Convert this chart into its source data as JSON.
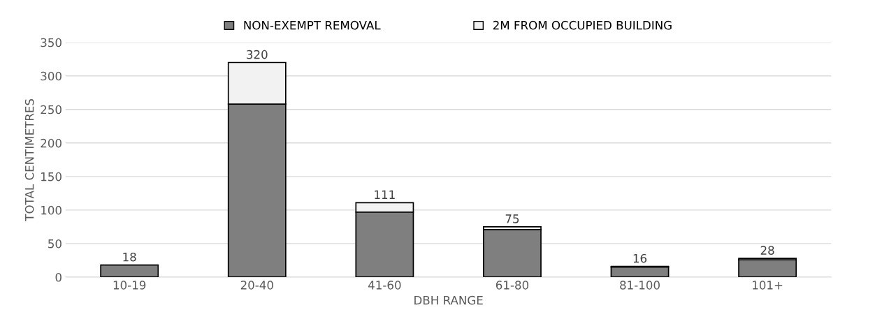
{
  "chart_data": {
    "type": "bar",
    "stacked": true,
    "xlabel": "DBH RANGE",
    "ylabel": "TOTAL CENTIMETRES",
    "categories": [
      "10-19",
      "20-40",
      "41-60",
      "61-80",
      "81-100",
      "101+"
    ],
    "series": [
      {
        "name": "NON-EXEMPT REMOVAL",
        "color": "#7f7f7f",
        "values": [
          18,
          258,
          97,
          71,
          15,
          26
        ]
      },
      {
        "name": "2M FROM OCCUPIED BUILDING",
        "color": "#f2f2f2",
        "values": [
          null,
          62,
          14,
          4,
          1,
          2
        ]
      }
    ],
    "totals": [
      "18",
      "320",
      "111",
      "75",
      "16",
      "28"
    ],
    "ylim": [
      0,
      350
    ],
    "yticks": [
      0,
      50,
      100,
      150,
      200,
      250,
      300,
      350
    ],
    "grid": "y",
    "legend": "top"
  }
}
